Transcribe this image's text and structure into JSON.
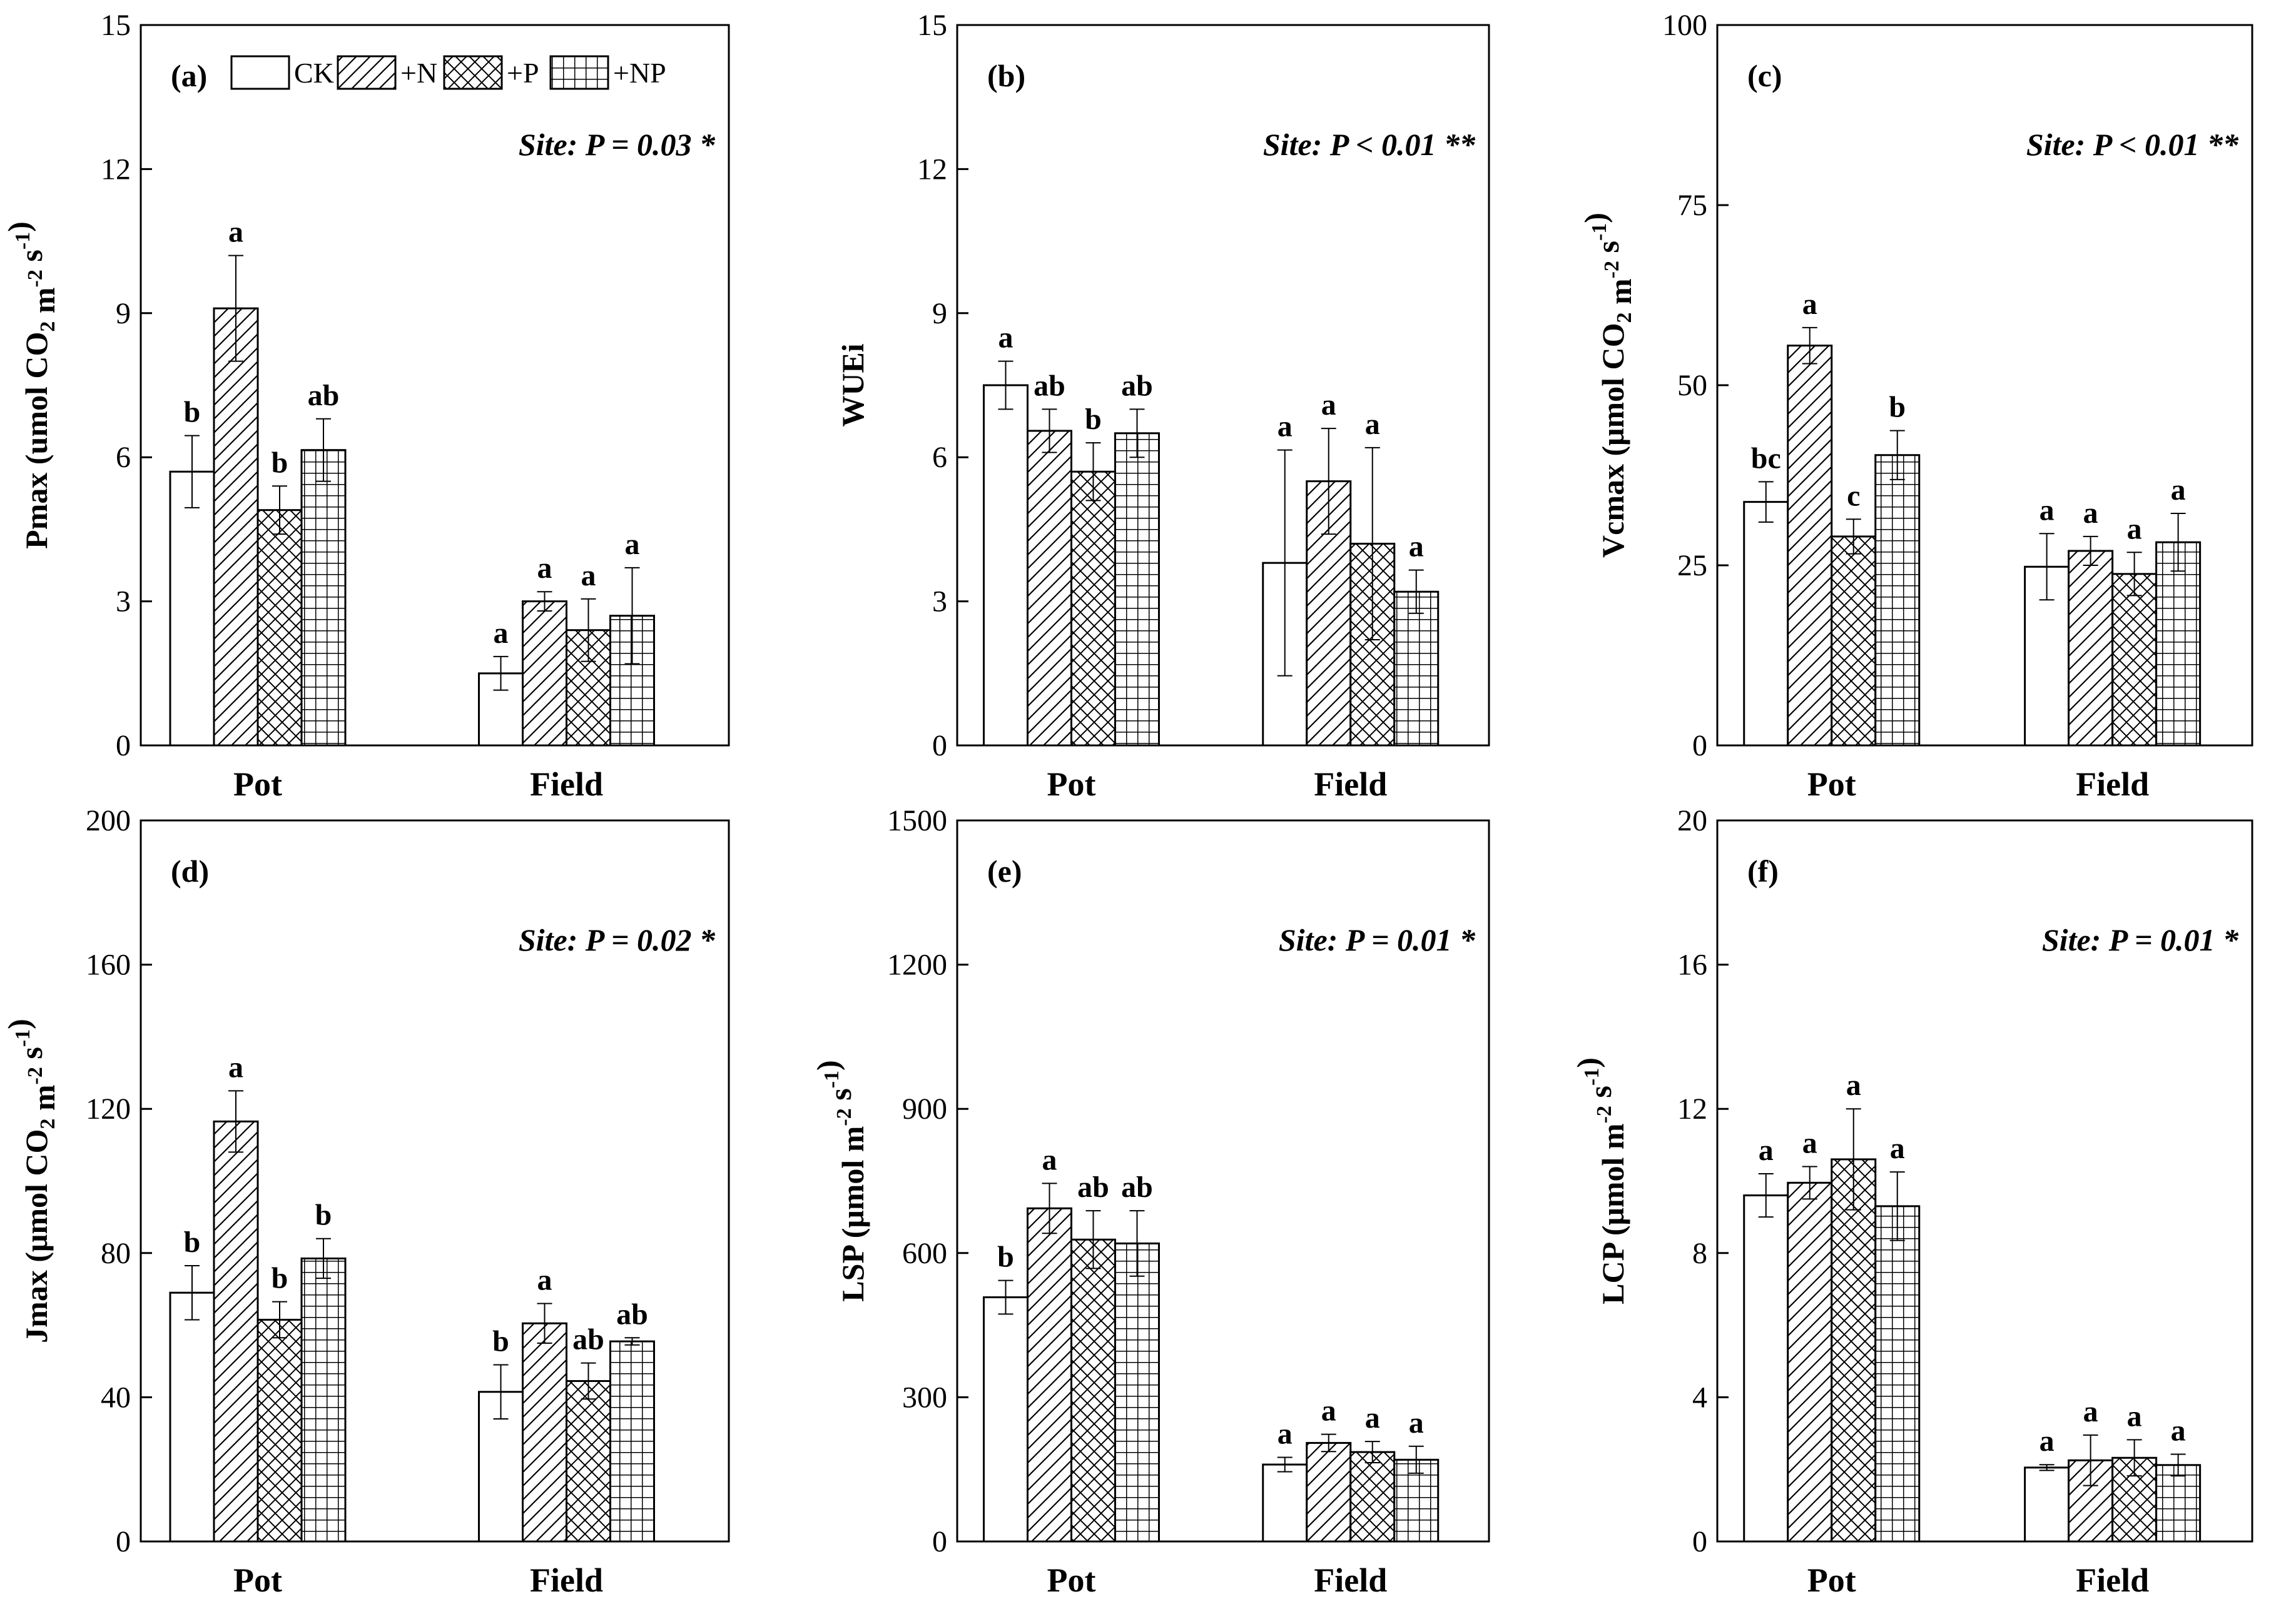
{
  "legend": [
    {
      "key": "CK",
      "label": "CK"
    },
    {
      "key": "N",
      "label": "+N"
    },
    {
      "key": "P",
      "label": "+P"
    },
    {
      "key": "NP",
      "label": "+NP"
    }
  ],
  "chart_data": [
    {
      "type": "bar",
      "panel_label": "(a)",
      "site_text": "Site: P = 0.03 *",
      "ylabel_parts": [
        "Pmax (umol CO",
        "2",
        " m",
        "-2",
        " s",
        "-1",
        ")"
      ],
      "categories": [
        "Pot",
        "Field"
      ],
      "ylim": [
        0,
        15
      ],
      "yticks": [
        0,
        3,
        6,
        9,
        12,
        15
      ],
      "series": [
        {
          "name": "CK",
          "values": [
            5.7,
            1.5
          ],
          "errors": [
            0.75,
            0.35
          ],
          "letters": [
            "b",
            "a"
          ]
        },
        {
          "name": "+N",
          "values": [
            9.1,
            3.0
          ],
          "errors": [
            1.1,
            0.2
          ],
          "letters": [
            "a",
            "a"
          ]
        },
        {
          "name": "+P",
          "values": [
            4.9,
            2.4
          ],
          "errors": [
            0.5,
            0.65
          ],
          "letters": [
            "b",
            "a"
          ]
        },
        {
          "name": "+NP",
          "values": [
            6.15,
            2.7
          ],
          "errors": [
            0.65,
            1.0
          ],
          "letters": [
            "ab",
            "a"
          ]
        }
      ]
    },
    {
      "type": "bar",
      "panel_label": "(b)",
      "site_text": "Site: P < 0.01 **",
      "ylabel_parts": [
        "WUEi"
      ],
      "categories": [
        "Pot",
        "Field"
      ],
      "ylim": [
        0,
        15
      ],
      "yticks": [
        0,
        3,
        6,
        9,
        12,
        15
      ],
      "series": [
        {
          "name": "CK",
          "values": [
            7.5,
            3.8
          ],
          "errors": [
            0.5,
            2.35
          ],
          "letters": [
            "a",
            "a"
          ]
        },
        {
          "name": "+N",
          "values": [
            6.55,
            5.5
          ],
          "errors": [
            0.45,
            1.1
          ],
          "letters": [
            "ab",
            "a"
          ]
        },
        {
          "name": "+P",
          "values": [
            5.7,
            4.2
          ],
          "errors": [
            0.6,
            2.0
          ],
          "letters": [
            "b",
            "a"
          ]
        },
        {
          "name": "+NP",
          "values": [
            6.5,
            3.2
          ],
          "errors": [
            0.5,
            0.45
          ],
          "letters": [
            "ab",
            "a"
          ]
        }
      ]
    },
    {
      "type": "bar",
      "panel_label": "(c)",
      "site_text": "Site: P < 0.01 **",
      "ylabel_parts": [
        "Vcmax (μmol CO",
        "2",
        " m",
        "-2",
        " s",
        "-1",
        ")"
      ],
      "categories": [
        "Pot",
        "Field"
      ],
      "ylim": [
        0,
        100
      ],
      "yticks": [
        0,
        25,
        50,
        75,
        100
      ],
      "series": [
        {
          "name": "CK",
          "values": [
            33.8,
            24.8
          ],
          "errors": [
            2.8,
            4.6
          ],
          "letters": [
            "bc",
            "a"
          ]
        },
        {
          "name": "+N",
          "values": [
            55.5,
            27.0
          ],
          "errors": [
            2.5,
            2.0
          ],
          "letters": [
            "a",
            "a"
          ]
        },
        {
          "name": "+P",
          "values": [
            29.0,
            23.8
          ],
          "errors": [
            2.4,
            3.0
          ],
          "letters": [
            "c",
            "a"
          ]
        },
        {
          "name": "+NP",
          "values": [
            40.3,
            28.2
          ],
          "errors": [
            3.4,
            4.0
          ],
          "letters": [
            "b",
            "a"
          ]
        }
      ]
    },
    {
      "type": "bar",
      "panel_label": "(d)",
      "site_text": "Site: P = 0.02 *",
      "ylabel_parts": [
        "Jmax (μmol CO",
        "2",
        " m",
        "-2",
        " s",
        "-1",
        ")"
      ],
      "categories": [
        "Pot",
        "Field"
      ],
      "ylim": [
        0,
        200
      ],
      "yticks": [
        0,
        40,
        80,
        120,
        160,
        200
      ],
      "series": [
        {
          "name": "CK",
          "values": [
            69,
            41.5
          ],
          "errors": [
            7.5,
            7.5
          ],
          "letters": [
            "b",
            "b"
          ]
        },
        {
          "name": "+N",
          "values": [
            116.5,
            60.5
          ],
          "errors": [
            8.5,
            5.5
          ],
          "letters": [
            "a",
            "a"
          ]
        },
        {
          "name": "+P",
          "values": [
            61.5,
            44.5
          ],
          "errors": [
            5.0,
            5.0
          ],
          "letters": [
            "b",
            "ab"
          ]
        },
        {
          "name": "+NP",
          "values": [
            78.5,
            55.5
          ],
          "errors": [
            5.5,
            1.0
          ],
          "letters": [
            "b",
            "ab"
          ]
        }
      ]
    },
    {
      "type": "bar",
      "panel_label": "(e)",
      "site_text": "Site: P = 0.01 *",
      "ylabel_parts": [
        "LSP (μmol m",
        "-2",
        " s",
        "-1",
        ")"
      ],
      "categories": [
        "Pot",
        "Field"
      ],
      "ylim": [
        0,
        1500
      ],
      "yticks": [
        0,
        300,
        600,
        900,
        1200,
        1500
      ],
      "series": [
        {
          "name": "CK",
          "values": [
            508,
            160
          ],
          "errors": [
            35,
            15
          ],
          "letters": [
            "b",
            "a"
          ]
        },
        {
          "name": "+N",
          "values": [
            693,
            205
          ],
          "errors": [
            52,
            18
          ],
          "letters": [
            "a",
            "a"
          ]
        },
        {
          "name": "+P",
          "values": [
            628,
            186
          ],
          "errors": [
            60,
            22
          ],
          "letters": [
            "ab",
            "a"
          ]
        },
        {
          "name": "+NP",
          "values": [
            620,
            170
          ],
          "errors": [
            68,
            28
          ],
          "letters": [
            "ab",
            "a"
          ]
        }
      ]
    },
    {
      "type": "bar",
      "panel_label": "(f)",
      "site_text": "Site: P = 0.01 *",
      "ylabel_parts": [
        "LCP (μmol m",
        "-2",
        " s",
        "-1",
        ")"
      ],
      "categories": [
        "Pot",
        "Field"
      ],
      "ylim": [
        0,
        20
      ],
      "yticks": [
        0,
        4,
        8,
        12,
        16,
        20
      ],
      "series": [
        {
          "name": "CK",
          "values": [
            9.6,
            2.05
          ],
          "errors": [
            0.6,
            0.08
          ],
          "letters": [
            "a",
            "a"
          ]
        },
        {
          "name": "+N",
          "values": [
            9.95,
            2.25
          ],
          "errors": [
            0.45,
            0.7
          ],
          "letters": [
            "a",
            "a"
          ]
        },
        {
          "name": "+P",
          "values": [
            10.6,
            2.32
          ],
          "errors": [
            1.4,
            0.5
          ],
          "letters": [
            "a",
            "a"
          ]
        },
        {
          "name": "+NP",
          "values": [
            9.3,
            2.12
          ],
          "errors": [
            0.95,
            0.3
          ],
          "letters": [
            "a",
            "a"
          ]
        }
      ]
    }
  ]
}
